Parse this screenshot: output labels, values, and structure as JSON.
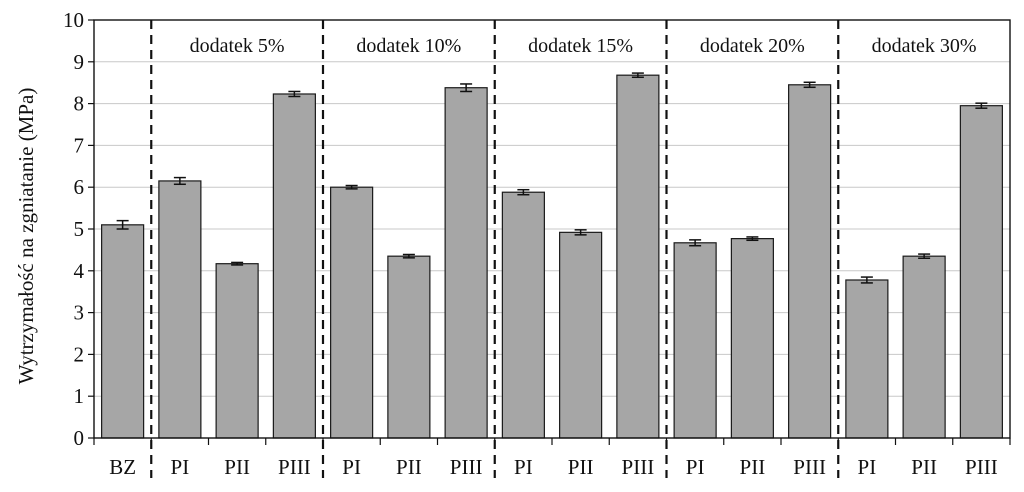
{
  "chart_data": {
    "type": "bar",
    "ylabel": "Wytrzymałość na zgniatanie (MPa)",
    "xlabel": "",
    "ylim": [
      0,
      10
    ],
    "yticks": [
      "0",
      "1",
      "2",
      "3",
      "4",
      "5",
      "6",
      "7",
      "8",
      "9",
      "10"
    ],
    "grid": true,
    "categories": [
      "BZ",
      "PI",
      "PII",
      "PIII",
      "PI",
      "PII",
      "PIII",
      "PI",
      "PII",
      "PIII",
      "PI",
      "PII",
      "PIII",
      "PI",
      "PII",
      "PIII"
    ],
    "values": [
      5.1,
      6.15,
      4.17,
      8.23,
      6.0,
      4.35,
      8.38,
      5.88,
      4.92,
      8.68,
      4.67,
      4.77,
      8.45,
      3.78,
      4.35,
      7.95
    ],
    "errors": [
      0.1,
      0.08,
      0.03,
      0.06,
      0.04,
      0.04,
      0.09,
      0.06,
      0.06,
      0.05,
      0.07,
      0.04,
      0.06,
      0.07,
      0.05,
      0.06
    ],
    "groups": [
      {
        "label": "dodatek 5%",
        "start": 1,
        "end": 3
      },
      {
        "label": "dodatek 10%",
        "start": 4,
        "end": 6
      },
      {
        "label": "dodatek 15%",
        "start": 7,
        "end": 9
      },
      {
        "label": "dodatek 20%",
        "start": 10,
        "end": 12
      },
      {
        "label": "dodatek 30%",
        "start": 13,
        "end": 15
      }
    ],
    "bar_color": "#a6a6a6",
    "bar_edge_color": "#1a1a1a",
    "grid_color": "#c8c8c8"
  }
}
